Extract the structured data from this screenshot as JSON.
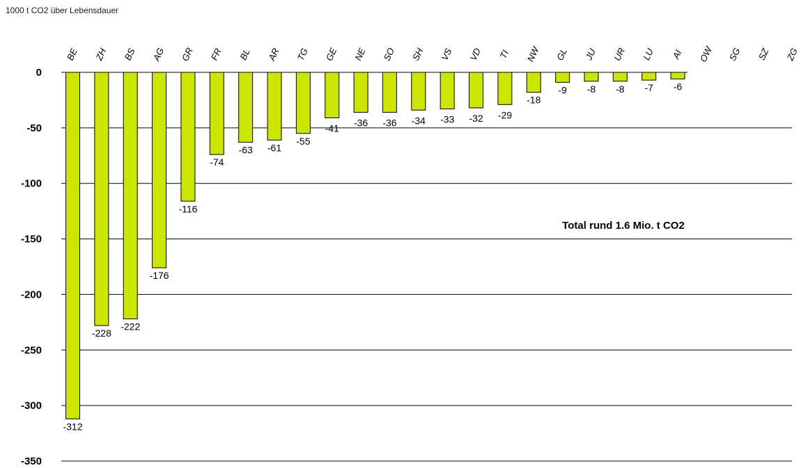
{
  "chart_data": {
    "type": "bar",
    "ylabel": "1000 t CO2 über Lebensdauer",
    "categories": [
      "BE",
      "ZH",
      "BS",
      "AG",
      "GR",
      "FR",
      "BL",
      "AR",
      "TG",
      "GE",
      "NE",
      "SO",
      "SH",
      "VS",
      "VD",
      "TI",
      "NW",
      "GL",
      "JU",
      "UR",
      "LU",
      "AI",
      "OW",
      "SG",
      "SZ",
      "ZG"
    ],
    "values": [
      -312,
      -228,
      -222,
      -176,
      -116,
      -74,
      -63,
      -61,
      -55,
      -41,
      -36,
      -36,
      -34,
      -33,
      -32,
      -29,
      -18,
      -9,
      -8,
      -8,
      -7,
      -6,
      null,
      null,
      null,
      null
    ],
    "data_labels": [
      "-312",
      "-228",
      "-222",
      "-176",
      "-116",
      "-74",
      "-63",
      "-61",
      "-55",
      "-41",
      "-36",
      "-36",
      "-34",
      "-33",
      "-32",
      "-29",
      "-18",
      "-9",
      "-8",
      "-8",
      "-7",
      "-6",
      "",
      "",
      "",
      ""
    ],
    "ylim": [
      -350,
      0
    ],
    "yticks": [
      0,
      -50,
      -100,
      -150,
      -200,
      -250,
      -300,
      -350
    ],
    "ytick_labels": [
      "0",
      "-50",
      "-100",
      "-150",
      "-200",
      "-250",
      "-300",
      "-350"
    ],
    "annotation": "Total rund 1.6 Mio. t CO2",
    "bar_color": "#cce600",
    "grid": true,
    "category_axis_position": "top"
  }
}
